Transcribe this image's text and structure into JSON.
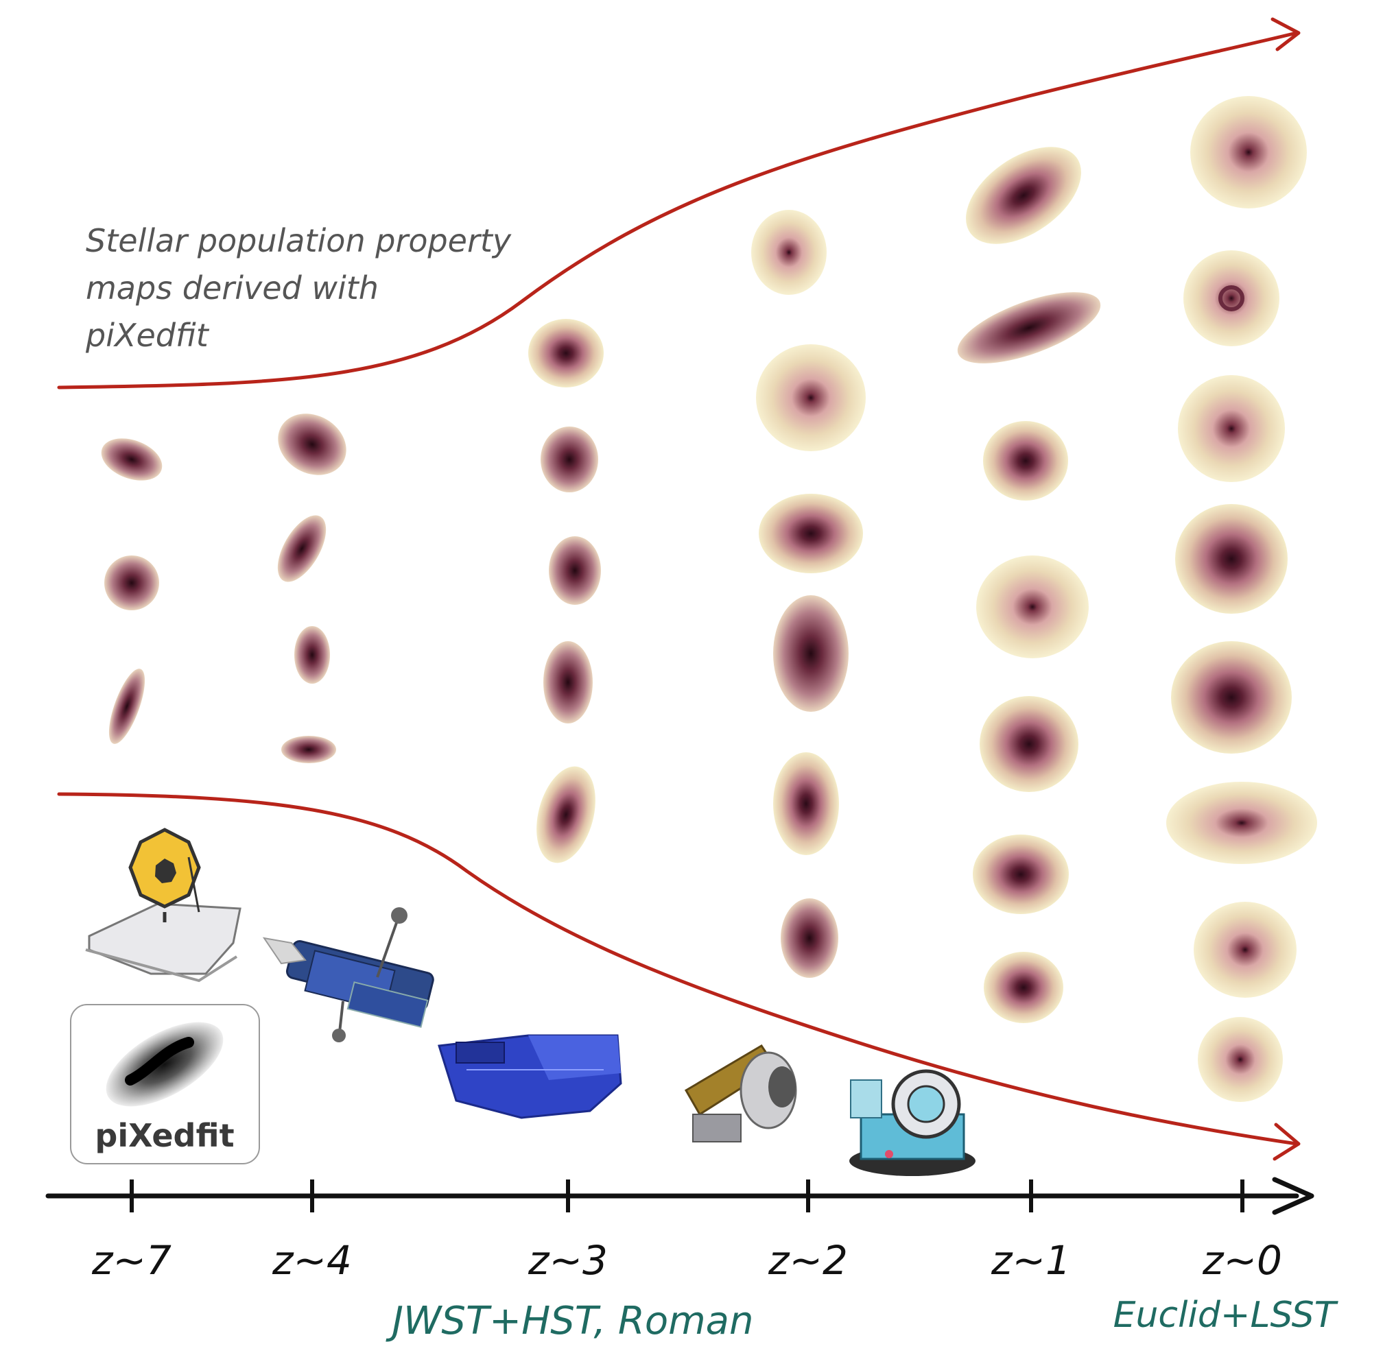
{
  "annotation": {
    "lines": [
      "Stellar population property",
      "maps derived with",
      "piXedfit"
    ]
  },
  "logo": {
    "text": "piXedfit"
  },
  "axis": {
    "ticks": [
      "z~7",
      "z~4",
      "z~3",
      "z~2",
      "z~1",
      "z~0"
    ]
  },
  "surveys": {
    "left": "JWST+HST, Roman",
    "right": "Euclid+LSST"
  },
  "icons": [
    "jwst-telescope-icon",
    "hubble-telescope-icon",
    "roman-telescope-icon",
    "euclid-telescope-icon",
    "lsst-telescope-icon",
    "pixedfit-logo-icon"
  ],
  "colors": {
    "funnel": "#b8241a",
    "axis": "#111111",
    "survey_text": "#1f6b62",
    "note_text": "#555555",
    "galaxy_core": "#3a0f1e",
    "galaxy_mid": "#a8606f",
    "galaxy_outer": "#f1e8c2"
  }
}
